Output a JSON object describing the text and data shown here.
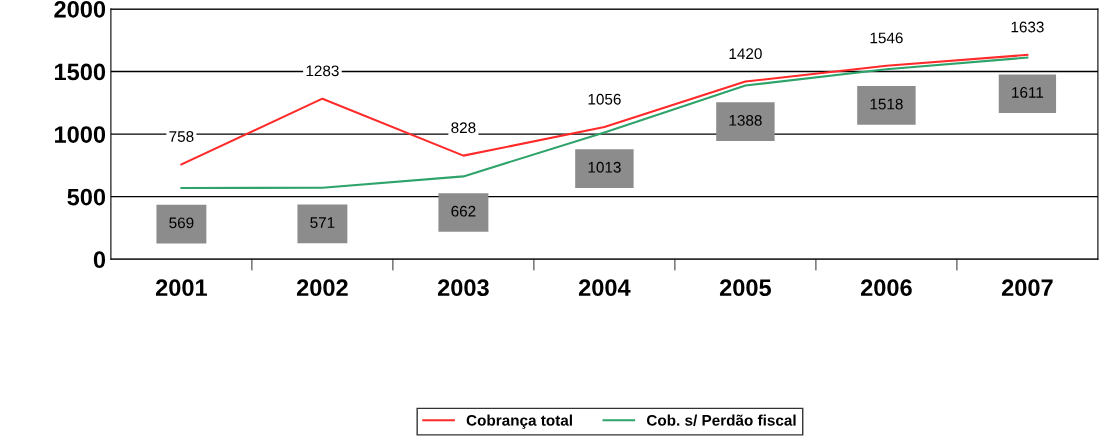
{
  "chart_data": {
    "type": "line",
    "categories": [
      "2001",
      "2002",
      "2003",
      "2004",
      "2005",
      "2006",
      "2007"
    ],
    "series": [
      {
        "name": "Cobrança total",
        "color": "#ff2a2a",
        "values": [
          758,
          1283,
          828,
          1056,
          1420,
          1546,
          1633
        ]
      },
      {
        "name": "Cob. s/ Perdão fiscal",
        "color": "#2ea36a",
        "values": [
          569,
          571,
          662,
          1013,
          1388,
          1518,
          1611
        ]
      }
    ],
    "ylim": [
      0,
      2000
    ],
    "yticks": [
      0,
      500,
      1000,
      1500,
      2000
    ],
    "grid": "y",
    "legend": "bottom",
    "data_labels": true,
    "marker": "none",
    "line_style": "solid"
  }
}
